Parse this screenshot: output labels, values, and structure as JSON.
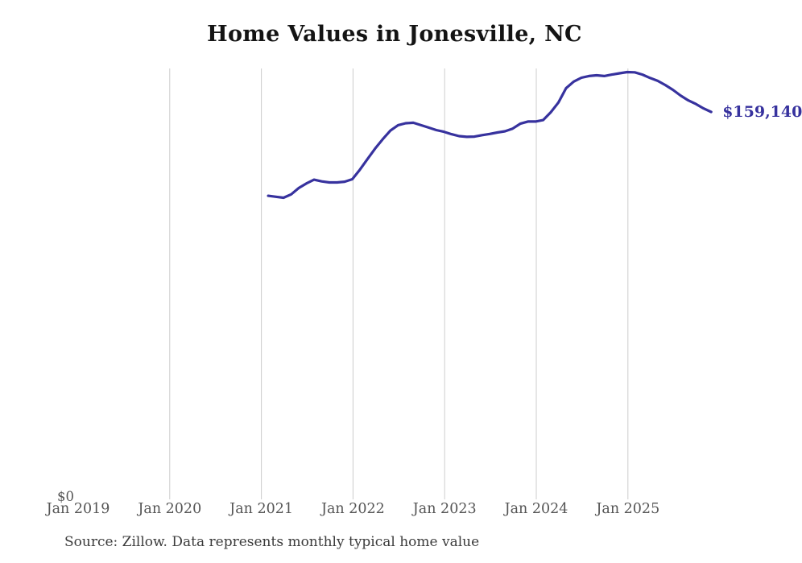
{
  "chart_data": {
    "type": "line",
    "title": "Home Values in Jonesville, NC",
    "source": "Source: Zillow. Data represents monthly typical home value",
    "series_name": "Typical home value",
    "unit": "USD",
    "end_label": "$159,140",
    "line_color": "#37329e",
    "gridline_color": "#cccccc",
    "tick_color": "#555555",
    "ylim": [
      0,
      177000
    ],
    "x_ticks": [
      "Jan 2019",
      "Jan 2020",
      "Jan 2021",
      "Jan 2022",
      "Jan 2023",
      "Jan 2024",
      "Jan 2025"
    ],
    "y_ticks": [
      {
        "label": "$0",
        "value": 0
      }
    ],
    "points": [
      {
        "date": "Jan 2021",
        "value": 124700
      },
      {
        "date": "Feb 2021",
        "value": 124300
      },
      {
        "date": "Mar 2021",
        "value": 123900
      },
      {
        "date": "Apr 2021",
        "value": 125300
      },
      {
        "date": "May 2021",
        "value": 127900
      },
      {
        "date": "Jun 2021",
        "value": 129800
      },
      {
        "date": "Jul 2021",
        "value": 131300
      },
      {
        "date": "Aug 2021",
        "value": 130600
      },
      {
        "date": "Sep 2021",
        "value": 130200
      },
      {
        "date": "Oct 2021",
        "value": 130200
      },
      {
        "date": "Nov 2021",
        "value": 130500
      },
      {
        "date": "Dec 2021",
        "value": 131500
      },
      {
        "date": "Jan 2022",
        "value": 135400
      },
      {
        "date": "Feb 2022",
        "value": 139800
      },
      {
        "date": "Mar 2022",
        "value": 144100
      },
      {
        "date": "Apr 2022",
        "value": 148000
      },
      {
        "date": "May 2022",
        "value": 151500
      },
      {
        "date": "Jun 2022",
        "value": 153700
      },
      {
        "date": "Jul 2022",
        "value": 154500
      },
      {
        "date": "Aug 2022",
        "value": 154700
      },
      {
        "date": "Sep 2022",
        "value": 153700
      },
      {
        "date": "Oct 2022",
        "value": 152700
      },
      {
        "date": "Nov 2022",
        "value": 151700
      },
      {
        "date": "Dec 2022",
        "value": 151000
      },
      {
        "date": "Jan 2023",
        "value": 150000
      },
      {
        "date": "Feb 2023",
        "value": 149200
      },
      {
        "date": "Mar 2023",
        "value": 148900
      },
      {
        "date": "Apr 2023",
        "value": 149000
      },
      {
        "date": "May 2023",
        "value": 149600
      },
      {
        "date": "Jun 2023",
        "value": 150100
      },
      {
        "date": "Jul 2023",
        "value": 150700
      },
      {
        "date": "Aug 2023",
        "value": 151200
      },
      {
        "date": "Sep 2023",
        "value": 152300
      },
      {
        "date": "Oct 2023",
        "value": 154300
      },
      {
        "date": "Nov 2023",
        "value": 155200
      },
      {
        "date": "Dec 2023",
        "value": 155200
      },
      {
        "date": "Jan 2024",
        "value": 155800
      },
      {
        "date": "Feb 2024",
        "value": 159000
      },
      {
        "date": "Mar 2024",
        "value": 163000
      },
      {
        "date": "Apr 2024",
        "value": 168900
      },
      {
        "date": "May 2024",
        "value": 171600
      },
      {
        "date": "Jun 2024",
        "value": 173200
      },
      {
        "date": "Jul 2024",
        "value": 173900
      },
      {
        "date": "Aug 2024",
        "value": 174200
      },
      {
        "date": "Sep 2024",
        "value": 173900
      },
      {
        "date": "Oct 2024",
        "value": 174500
      },
      {
        "date": "Nov 2024",
        "value": 175000
      },
      {
        "date": "Dec 2024",
        "value": 175500
      },
      {
        "date": "Jan 2025",
        "value": 175400
      },
      {
        "date": "Feb 2025",
        "value": 174500
      },
      {
        "date": "Mar 2025",
        "value": 173100
      },
      {
        "date": "Apr 2025",
        "value": 171900
      },
      {
        "date": "May 2025",
        "value": 170200
      },
      {
        "date": "Jun 2025",
        "value": 168200
      },
      {
        "date": "Jul 2025",
        "value": 165900
      },
      {
        "date": "Aug 2025",
        "value": 163900
      },
      {
        "date": "Sep 2025",
        "value": 162400
      },
      {
        "date": "Oct 2025",
        "value": 160600
      },
      {
        "date": "Nov 2025",
        "value": 159140
      }
    ]
  }
}
